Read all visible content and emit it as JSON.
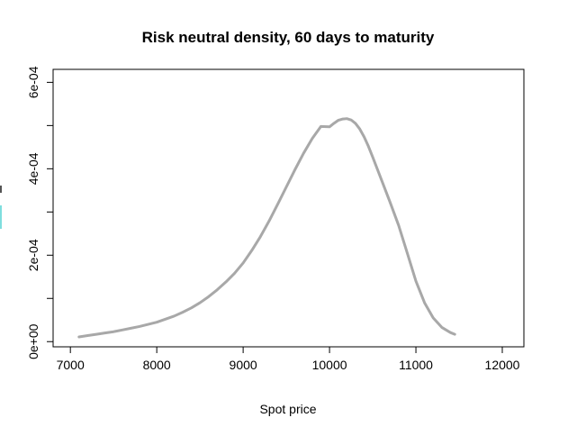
{
  "chart_data": {
    "type": "line",
    "title": "Risk neutral density, 60 days to maturity",
    "xlabel": "Spot price",
    "ylabel": "",
    "xlim": [
      6800,
      12250
    ],
    "ylim": [
      -1.2e-05,
      0.00063
    ],
    "x_ticks": [
      7000,
      8000,
      9000,
      10000,
      11000,
      12000
    ],
    "x_tick_labels": [
      "7000",
      "8000",
      "9000",
      "10000",
      "11000",
      "12000"
    ],
    "y_ticks": [
      0,
      0.0001,
      0.0002,
      0.0003,
      0.0004,
      0.0005,
      0.0006
    ],
    "y_tick_labels": [
      "0e+00",
      "",
      "2e-04",
      "",
      "4e-04",
      "",
      "6e-04"
    ],
    "grid": false,
    "series": [
      {
        "color": "#a8a8a8",
        "x": [
          7100,
          7200,
          7300,
          7400,
          7500,
          7600,
          7700,
          7800,
          7900,
          8000,
          8100,
          8200,
          8300,
          8400,
          8500,
          8600,
          8700,
          8800,
          8900,
          9000,
          9100,
          9200,
          9300,
          9400,
          9500,
          9600,
          9700,
          9800,
          9900,
          10000,
          10050,
          10100,
          10150,
          10200,
          10250,
          10300,
          10350,
          10400,
          10450,
          10500,
          10550,
          10600,
          10650,
          10700,
          10800,
          10900,
          11000,
          11100,
          11200,
          11300,
          11400,
          11450
        ],
        "values": [
          1.1e-05,
          1.4e-05,
          1.7e-05,
          2e-05,
          2.3e-05,
          2.7e-05,
          3.1e-05,
          3.5e-05,
          4e-05,
          4.5e-05,
          5.2e-05,
          5.9e-05,
          6.8e-05,
          7.8e-05,
          9e-05,
          0.000104,
          0.00012,
          0.000138,
          0.000158,
          0.000182,
          0.000211,
          0.000243,
          0.000279,
          0.000318,
          0.000358,
          0.000398,
          0.000436,
          0.00047,
          0.000498,
          0.000497,
          0.000505,
          0.000512,
          0.000515,
          0.000516,
          0.000513,
          0.000505,
          0.000492,
          0.000474,
          0.000452,
          0.000427,
          0.000401,
          0.000375,
          0.000349,
          0.000323,
          0.000269,
          0.000205,
          0.00014,
          9e-05,
          5.5e-05,
          3.3e-05,
          2.1e-05,
          1.7e-05
        ]
      }
    ]
  }
}
